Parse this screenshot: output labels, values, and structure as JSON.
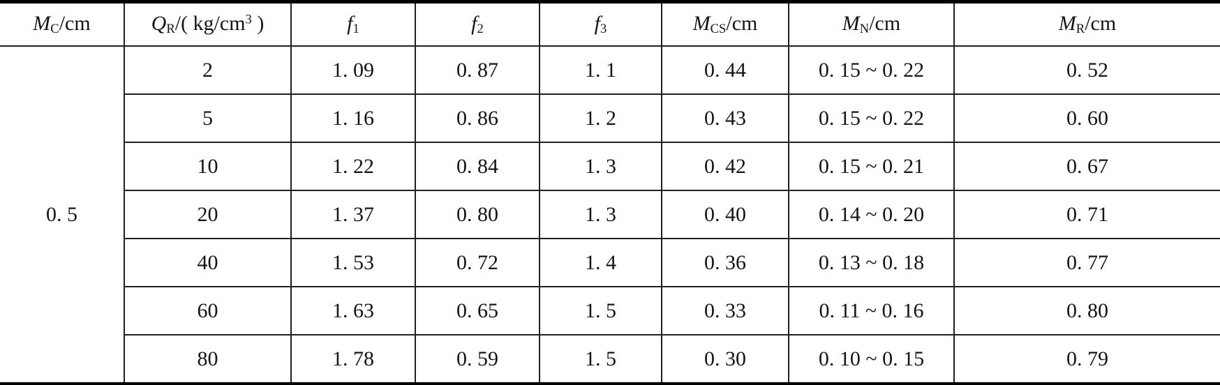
{
  "table": {
    "merged_cell": {
      "value": "0. 5",
      "rowspan": 7
    },
    "headers": [
      {
        "name": "M_C/cm",
        "segments": [
          {
            "t": "M",
            "s": "i"
          },
          {
            "t": "C",
            "s": "sub"
          },
          {
            "t": "/cm",
            "s": "n"
          }
        ]
      },
      {
        "name": "Q_R/(kg/cm3)",
        "segments": [
          {
            "t": "Q",
            "s": "i"
          },
          {
            "t": "R",
            "s": "sub"
          },
          {
            "t": "/( kg/cm",
            "s": "n"
          },
          {
            "t": "3",
            "s": "sup"
          },
          {
            "t": " )",
            "s": "n"
          }
        ]
      },
      {
        "name": "f1",
        "segments": [
          {
            "t": "f",
            "s": "i"
          },
          {
            "t": "1",
            "s": "sub"
          }
        ]
      },
      {
        "name": "f2",
        "segments": [
          {
            "t": "f",
            "s": "i"
          },
          {
            "t": "2",
            "s": "sub"
          }
        ]
      },
      {
        "name": "f3",
        "segments": [
          {
            "t": "f",
            "s": "i"
          },
          {
            "t": "3",
            "s": "sub"
          }
        ]
      },
      {
        "name": "M_CS/cm",
        "segments": [
          {
            "t": "M",
            "s": "i"
          },
          {
            "t": "CS",
            "s": "sub"
          },
          {
            "t": "/cm",
            "s": "n"
          }
        ]
      },
      {
        "name": "M_N/cm",
        "segments": [
          {
            "t": "M",
            "s": "i"
          },
          {
            "t": "N",
            "s": "sub"
          },
          {
            "t": "/cm",
            "s": "n"
          }
        ]
      },
      {
        "name": "M_R/cm",
        "segments": [
          {
            "t": "M",
            "s": "i"
          },
          {
            "t": "R",
            "s": "sub"
          },
          {
            "t": "/cm",
            "s": "n"
          }
        ]
      }
    ],
    "rows": [
      [
        "2",
        "1. 09",
        "0. 87",
        "1. 1",
        "0. 44",
        "0. 15 ~ 0. 22",
        "0. 52"
      ],
      [
        "5",
        "1. 16",
        "0. 86",
        "1. 2",
        "0. 43",
        "0. 15 ~ 0. 22",
        "0. 60"
      ],
      [
        "10",
        "1. 22",
        "0. 84",
        "1. 3",
        "0. 42",
        "0. 15 ~ 0. 21",
        "0. 67"
      ],
      [
        "20",
        "1. 37",
        "0. 80",
        "1. 3",
        "0. 40",
        "0. 14 ~ 0. 20",
        "0. 71"
      ],
      [
        "40",
        "1. 53",
        "0. 72",
        "1. 4",
        "0. 36",
        "0. 13 ~ 0. 18",
        "0. 77"
      ],
      [
        "60",
        "1. 63",
        "0. 65",
        "1. 5",
        "0. 33",
        "0. 11 ~ 0. 16",
        "0. 80"
      ],
      [
        "80",
        "1. 78",
        "0. 59",
        "1. 5",
        "0. 30",
        "0. 10 ~ 0. 15",
        "0. 79"
      ]
    ]
  },
  "chart_data": {
    "type": "table",
    "columns": [
      "M_C/cm",
      "Q_R/(kg/cm^3)",
      "f1",
      "f2",
      "f3",
      "M_CS/cm",
      "M_N/cm",
      "M_R/cm"
    ],
    "M_C_cm": 0.5,
    "rows": [
      {
        "Q_R": 2,
        "f1": 1.09,
        "f2": 0.87,
        "f3": 1.1,
        "M_CS": 0.44,
        "M_N_range": [
          0.15,
          0.22
        ],
        "M_R": 0.52
      },
      {
        "Q_R": 5,
        "f1": 1.16,
        "f2": 0.86,
        "f3": 1.2,
        "M_CS": 0.43,
        "M_N_range": [
          0.15,
          0.22
        ],
        "M_R": 0.6
      },
      {
        "Q_R": 10,
        "f1": 1.22,
        "f2": 0.84,
        "f3": 1.3,
        "M_CS": 0.42,
        "M_N_range": [
          0.15,
          0.21
        ],
        "M_R": 0.67
      },
      {
        "Q_R": 20,
        "f1": 1.37,
        "f2": 0.8,
        "f3": 1.3,
        "M_CS": 0.4,
        "M_N_range": [
          0.14,
          0.2
        ],
        "M_R": 0.71
      },
      {
        "Q_R": 40,
        "f1": 1.53,
        "f2": 0.72,
        "f3": 1.4,
        "M_CS": 0.36,
        "M_N_range": [
          0.13,
          0.18
        ],
        "M_R": 0.77
      },
      {
        "Q_R": 60,
        "f1": 1.63,
        "f2": 0.65,
        "f3": 1.5,
        "M_CS": 0.33,
        "M_N_range": [
          0.11,
          0.16
        ],
        "M_R": 0.8
      },
      {
        "Q_R": 80,
        "f1": 1.78,
        "f2": 0.59,
        "f3": 1.5,
        "M_CS": 0.3,
        "M_N_range": [
          0.1,
          0.15
        ],
        "M_R": 0.79
      }
    ]
  }
}
